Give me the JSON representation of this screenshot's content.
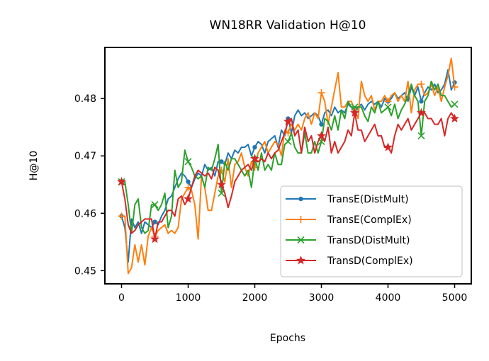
{
  "chart_data": {
    "type": "line",
    "title": "WN18RR Validation H@10",
    "xlabel": "Epochs",
    "ylabel": "H@10",
    "xlim": [
      -250,
      5250
    ],
    "ylim": [
      0.4477,
      0.4889
    ],
    "xticks": [
      0,
      1000,
      2000,
      3000,
      4000,
      5000
    ],
    "xtick_labels": [
      "0",
      "1000",
      "2000",
      "3000",
      "4000",
      "5000"
    ],
    "yticks": [
      0.45,
      0.46,
      0.47,
      0.48
    ],
    "ytick_labels": [
      "0.45",
      "0.46",
      "0.47",
      "0.48"
    ],
    "grid": false,
    "legend_position": "lower-right",
    "series": [
      {
        "name": "TransE(DistMult)",
        "color": "#1f77b4",
        "marker": "dot",
        "x": [
          0,
          50,
          100,
          150,
          200,
          250,
          300,
          350,
          400,
          450,
          500,
          550,
          600,
          650,
          700,
          750,
          800,
          850,
          900,
          950,
          1000,
          1050,
          1100,
          1150,
          1200,
          1250,
          1300,
          1350,
          1400,
          1450,
          1500,
          1550,
          1600,
          1650,
          1700,
          1750,
          1800,
          1850,
          1900,
          1950,
          2000,
          2050,
          2100,
          2150,
          2200,
          2250,
          2300,
          2350,
          2400,
          2450,
          2500,
          2550,
          2600,
          2650,
          2700,
          2750,
          2800,
          2850,
          2900,
          2950,
          3000,
          3050,
          3100,
          3150,
          3200,
          3250,
          3300,
          3350,
          3400,
          3450,
          3500,
          3550,
          3600,
          3650,
          3700,
          3750,
          3800,
          3850,
          3900,
          3950,
          4000,
          4050,
          4100,
          4150,
          4200,
          4250,
          4300,
          4350,
          4400,
          4450,
          4500,
          4550,
          4600,
          4650,
          4700,
          4750,
          4800,
          4850,
          4900,
          4950,
          5000
        ],
        "y": [
          0.4595,
          0.4575,
          0.4515,
          0.459,
          0.4575,
          0.4585,
          0.4565,
          0.4585,
          0.458,
          0.4575,
          0.4585,
          0.458,
          0.4595,
          0.4605,
          0.4625,
          0.463,
          0.4645,
          0.466,
          0.467,
          0.4665,
          0.4655,
          0.4645,
          0.466,
          0.467,
          0.4665,
          0.4685,
          0.4675,
          0.468,
          0.4665,
          0.469,
          0.469,
          0.4685,
          0.4705,
          0.4695,
          0.471,
          0.4705,
          0.4715,
          0.4715,
          0.472,
          0.47,
          0.4715,
          0.4725,
          0.472,
          0.4705,
          0.4725,
          0.473,
          0.4735,
          0.4715,
          0.4745,
          0.4735,
          0.4765,
          0.474,
          0.477,
          0.478,
          0.477,
          0.4775,
          0.4765,
          0.477,
          0.4775,
          0.477,
          0.4755,
          0.4775,
          0.478,
          0.477,
          0.4785,
          0.4775,
          0.478,
          0.4775,
          0.479,
          0.4785,
          0.4775,
          0.4785,
          0.479,
          0.478,
          0.479,
          0.4795,
          0.479,
          0.4795,
          0.4785,
          0.48,
          0.4795,
          0.48,
          0.481,
          0.48,
          0.4805,
          0.481,
          0.4795,
          0.482,
          0.4805,
          0.482,
          0.4795,
          0.481,
          0.482,
          0.4815,
          0.4825,
          0.481,
          0.4815,
          0.4825,
          0.485,
          0.4815,
          0.4828
        ]
      },
      {
        "name": "TransE(ComplEx)",
        "color": "#ff7f0e",
        "marker": "plus",
        "x": [
          0,
          50,
          100,
          150,
          200,
          250,
          300,
          350,
          400,
          450,
          500,
          550,
          600,
          650,
          700,
          750,
          800,
          850,
          900,
          950,
          1000,
          1050,
          1100,
          1150,
          1200,
          1250,
          1300,
          1350,
          1400,
          1450,
          1500,
          1550,
          1600,
          1650,
          1700,
          1750,
          1800,
          1850,
          1900,
          1950,
          2000,
          2050,
          2100,
          2150,
          2200,
          2250,
          2300,
          2350,
          2400,
          2450,
          2500,
          2550,
          2600,
          2650,
          2700,
          2750,
          2800,
          2850,
          2900,
          2950,
          3000,
          3050,
          3100,
          3150,
          3200,
          3250,
          3300,
          3350,
          3400,
          3450,
          3500,
          3550,
          3600,
          3650,
          3700,
          3750,
          3800,
          3850,
          3900,
          3950,
          4000,
          4050,
          4100,
          4150,
          4200,
          4250,
          4300,
          4350,
          4400,
          4450,
          4500,
          4550,
          4600,
          4650,
          4700,
          4750,
          4800,
          4850,
          4900,
          4950,
          5000
        ],
        "y": [
          0.4595,
          0.4595,
          0.4495,
          0.4505,
          0.4545,
          0.4515,
          0.4545,
          0.451,
          0.456,
          0.4575,
          0.456,
          0.457,
          0.4575,
          0.458,
          0.4565,
          0.457,
          0.4565,
          0.4575,
          0.4625,
          0.4635,
          0.4645,
          0.464,
          0.4615,
          0.4555,
          0.4665,
          0.4645,
          0.4605,
          0.4605,
          0.4635,
          0.4665,
          0.4675,
          0.4655,
          0.4695,
          0.4645,
          0.4685,
          0.469,
          0.4705,
          0.468,
          0.4665,
          0.469,
          0.468,
          0.4705,
          0.4715,
          0.4725,
          0.4705,
          0.4715,
          0.4725,
          0.472,
          0.47,
          0.4745,
          0.474,
          0.4755,
          0.4745,
          0.4755,
          0.4745,
          0.4765,
          0.4775,
          0.4755,
          0.4775,
          0.4765,
          0.481,
          0.4795,
          0.4755,
          0.4785,
          0.4815,
          0.4845,
          0.4785,
          0.4785,
          0.4795,
          0.4795,
          0.478,
          0.4765,
          0.483,
          0.4805,
          0.4795,
          0.4805,
          0.478,
          0.4795,
          0.4795,
          0.4805,
          0.4795,
          0.4805,
          0.481,
          0.4795,
          0.4805,
          0.4795,
          0.483,
          0.4775,
          0.4815,
          0.4825,
          0.4825,
          0.4805,
          0.481,
          0.4825,
          0.4805,
          0.482,
          0.4795,
          0.482,
          0.484,
          0.487,
          0.482
        ]
      },
      {
        "name": "TransD(DistMult)",
        "color": "#2ca02c",
        "marker": "x",
        "x": [
          0,
          50,
          100,
          150,
          200,
          250,
          300,
          350,
          400,
          450,
          500,
          550,
          600,
          650,
          700,
          750,
          800,
          850,
          900,
          950,
          1000,
          1050,
          1100,
          1150,
          1200,
          1250,
          1300,
          1350,
          1400,
          1450,
          1500,
          1550,
          1600,
          1650,
          1700,
          1750,
          1800,
          1850,
          1900,
          1950,
          2000,
          2050,
          2100,
          2150,
          2200,
          2250,
          2300,
          2350,
          2400,
          2450,
          2500,
          2550,
          2600,
          2650,
          2700,
          2750,
          2800,
          2850,
          2900,
          2950,
          3000,
          3050,
          3100,
          3150,
          3200,
          3250,
          3300,
          3350,
          3400,
          3450,
          3500,
          3550,
          3600,
          3650,
          3700,
          3750,
          3800,
          3850,
          3900,
          3950,
          4000,
          4050,
          4100,
          4150,
          4200,
          4250,
          4300,
          4350,
          4400,
          4450,
          4500,
          4550,
          4600,
          4650,
          4700,
          4750,
          4800,
          4850,
          4900,
          4950,
          5000
        ],
        "y": [
          0.4655,
          0.4655,
          0.4615,
          0.4565,
          0.4615,
          0.4625,
          0.4575,
          0.4565,
          0.457,
          0.4615,
          0.4615,
          0.4605,
          0.4615,
          0.4635,
          0.4575,
          0.4595,
          0.4675,
          0.4645,
          0.4655,
          0.471,
          0.469,
          0.468,
          0.4665,
          0.466,
          0.4665,
          0.4645,
          0.468,
          0.4675,
          0.4695,
          0.472,
          0.4635,
          0.469,
          0.4675,
          0.4695,
          0.4695,
          0.4685,
          0.4675,
          0.4665,
          0.4675,
          0.4645,
          0.4695,
          0.4675,
          0.4705,
          0.4675,
          0.4685,
          0.4675,
          0.4705,
          0.4685,
          0.4685,
          0.472,
          0.4725,
          0.474,
          0.4715,
          0.4705,
          0.4705,
          0.474,
          0.4705,
          0.4705,
          0.4725,
          0.4705,
          0.4725,
          0.4765,
          0.476,
          0.4745,
          0.477,
          0.4745,
          0.478,
          0.4765,
          0.4795,
          0.4785,
          0.4785,
          0.4785,
          0.4785,
          0.477,
          0.476,
          0.4785,
          0.4775,
          0.4795,
          0.4775,
          0.478,
          0.4785,
          0.477,
          0.479,
          0.4765,
          0.478,
          0.479,
          0.4805,
          0.4825,
          0.4805,
          0.4795,
          0.4735,
          0.4795,
          0.4805,
          0.483,
          0.4815,
          0.4825,
          0.4805,
          0.4805,
          0.4795,
          0.4785,
          0.479
        ]
      },
      {
        "name": "TransD(ComplEx)",
        "color": "#d62728",
        "marker": "star",
        "x": [
          0,
          50,
          100,
          150,
          200,
          250,
          300,
          350,
          400,
          450,
          500,
          550,
          600,
          650,
          700,
          750,
          800,
          850,
          900,
          950,
          1000,
          1050,
          1100,
          1150,
          1200,
          1250,
          1300,
          1350,
          1400,
          1450,
          1500,
          1550,
          1600,
          1650,
          1700,
          1750,
          1800,
          1850,
          1900,
          1950,
          2000,
          2050,
          2100,
          2150,
          2200,
          2250,
          2300,
          2350,
          2400,
          2450,
          2500,
          2550,
          2600,
          2650,
          2700,
          2750,
          2800,
          2850,
          2900,
          2950,
          3000,
          3050,
          3100,
          3150,
          3200,
          3250,
          3300,
          3350,
          3400,
          3450,
          3500,
          3550,
          3600,
          3650,
          3700,
          3750,
          3800,
          3850,
          3900,
          3950,
          4000,
          4050,
          4100,
          4150,
          4200,
          4250,
          4300,
          4350,
          4400,
          4450,
          4500,
          4550,
          4600,
          4650,
          4700,
          4750,
          4800,
          4850,
          4900,
          4950,
          5000
        ],
        "y": [
          0.4655,
          0.4625,
          0.458,
          0.4565,
          0.457,
          0.458,
          0.4585,
          0.459,
          0.459,
          0.459,
          0.4555,
          0.4585,
          0.4585,
          0.4595,
          0.4605,
          0.4605,
          0.4595,
          0.4625,
          0.463,
          0.4615,
          0.4625,
          0.4645,
          0.4665,
          0.4675,
          0.467,
          0.4665,
          0.467,
          0.466,
          0.468,
          0.4675,
          0.465,
          0.4635,
          0.461,
          0.463,
          0.4655,
          0.4665,
          0.4675,
          0.468,
          0.4685,
          0.4675,
          0.4695,
          0.469,
          0.4695,
          0.469,
          0.4705,
          0.4695,
          0.4705,
          0.471,
          0.4725,
          0.474,
          0.476,
          0.4765,
          0.4735,
          0.4745,
          0.4705,
          0.475,
          0.4725,
          0.4735,
          0.4705,
          0.4725,
          0.4735,
          0.4725,
          0.475,
          0.4705,
          0.4725,
          0.4705,
          0.4715,
          0.4725,
          0.4745,
          0.4735,
          0.4775,
          0.4745,
          0.4745,
          0.4725,
          0.4735,
          0.4745,
          0.4755,
          0.4735,
          0.4735,
          0.4715,
          0.4715,
          0.4705,
          0.4735,
          0.4755,
          0.4745,
          0.4755,
          0.4765,
          0.4745,
          0.4755,
          0.4765,
          0.4775,
          0.4775,
          0.4765,
          0.4765,
          0.4755,
          0.4755,
          0.4765,
          0.4735,
          0.4765,
          0.4775,
          0.4765
        ]
      }
    ],
    "markevery": 10
  }
}
